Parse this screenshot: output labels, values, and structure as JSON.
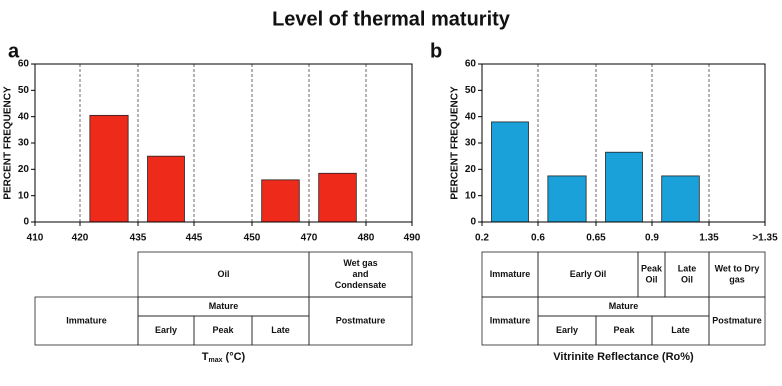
{
  "title": "Level of thermal maturity",
  "chart_data": [
    {
      "type": "bar",
      "panel": "a",
      "ylabel": "PERCENT FREQUENCY",
      "color": "#ee2a1b",
      "ylim": [
        0,
        60
      ],
      "yticks": [
        0,
        10,
        20,
        30,
        40,
        50,
        60
      ],
      "x_tick_labels": [
        "410",
        "420",
        "435",
        "445",
        "450",
        "470",
        "480",
        "490"
      ],
      "values": [
        0,
        40.5,
        25,
        0,
        16,
        18.5,
        0
      ]
    },
    {
      "type": "bar",
      "panel": "b",
      "ylabel": "PERCENT FREQUENCY",
      "color": "#1ba1d9",
      "ylim": [
        0,
        60
      ],
      "yticks": [
        0,
        10,
        20,
        30,
        40,
        50,
        60
      ],
      "x_tick_labels": [
        "0.2",
        "0.6",
        "0.65",
        "0.9",
        "1.35",
        ">1.35"
      ],
      "values": [
        38,
        17.5,
        26.5,
        17.5,
        0
      ]
    }
  ],
  "tables": [
    {
      "top": [
        [
          "Oil"
        ],
        [
          "Wet gas",
          "and",
          "Condensate"
        ]
      ],
      "immature": "Immature",
      "mature": "Mature",
      "stages": [
        "Early",
        "Peak",
        "Late"
      ],
      "postmature": "Postmature",
      "axis_label": [
        "T",
        "max",
        " (°C)"
      ]
    },
    {
      "top": [
        [
          "Immature"
        ],
        [
          "Early Oil"
        ],
        [
          "Peak",
          "Oil"
        ],
        [
          "Late",
          "Oil"
        ],
        [
          "Wet to Dry",
          "gas"
        ]
      ],
      "immature": "Immature",
      "mature": "Mature",
      "stages": [
        "Early",
        "Peak",
        "Late"
      ],
      "postmature": "Postmature",
      "axis_label": [
        "Vitrinite Reflectance (Ro%)"
      ]
    }
  ]
}
